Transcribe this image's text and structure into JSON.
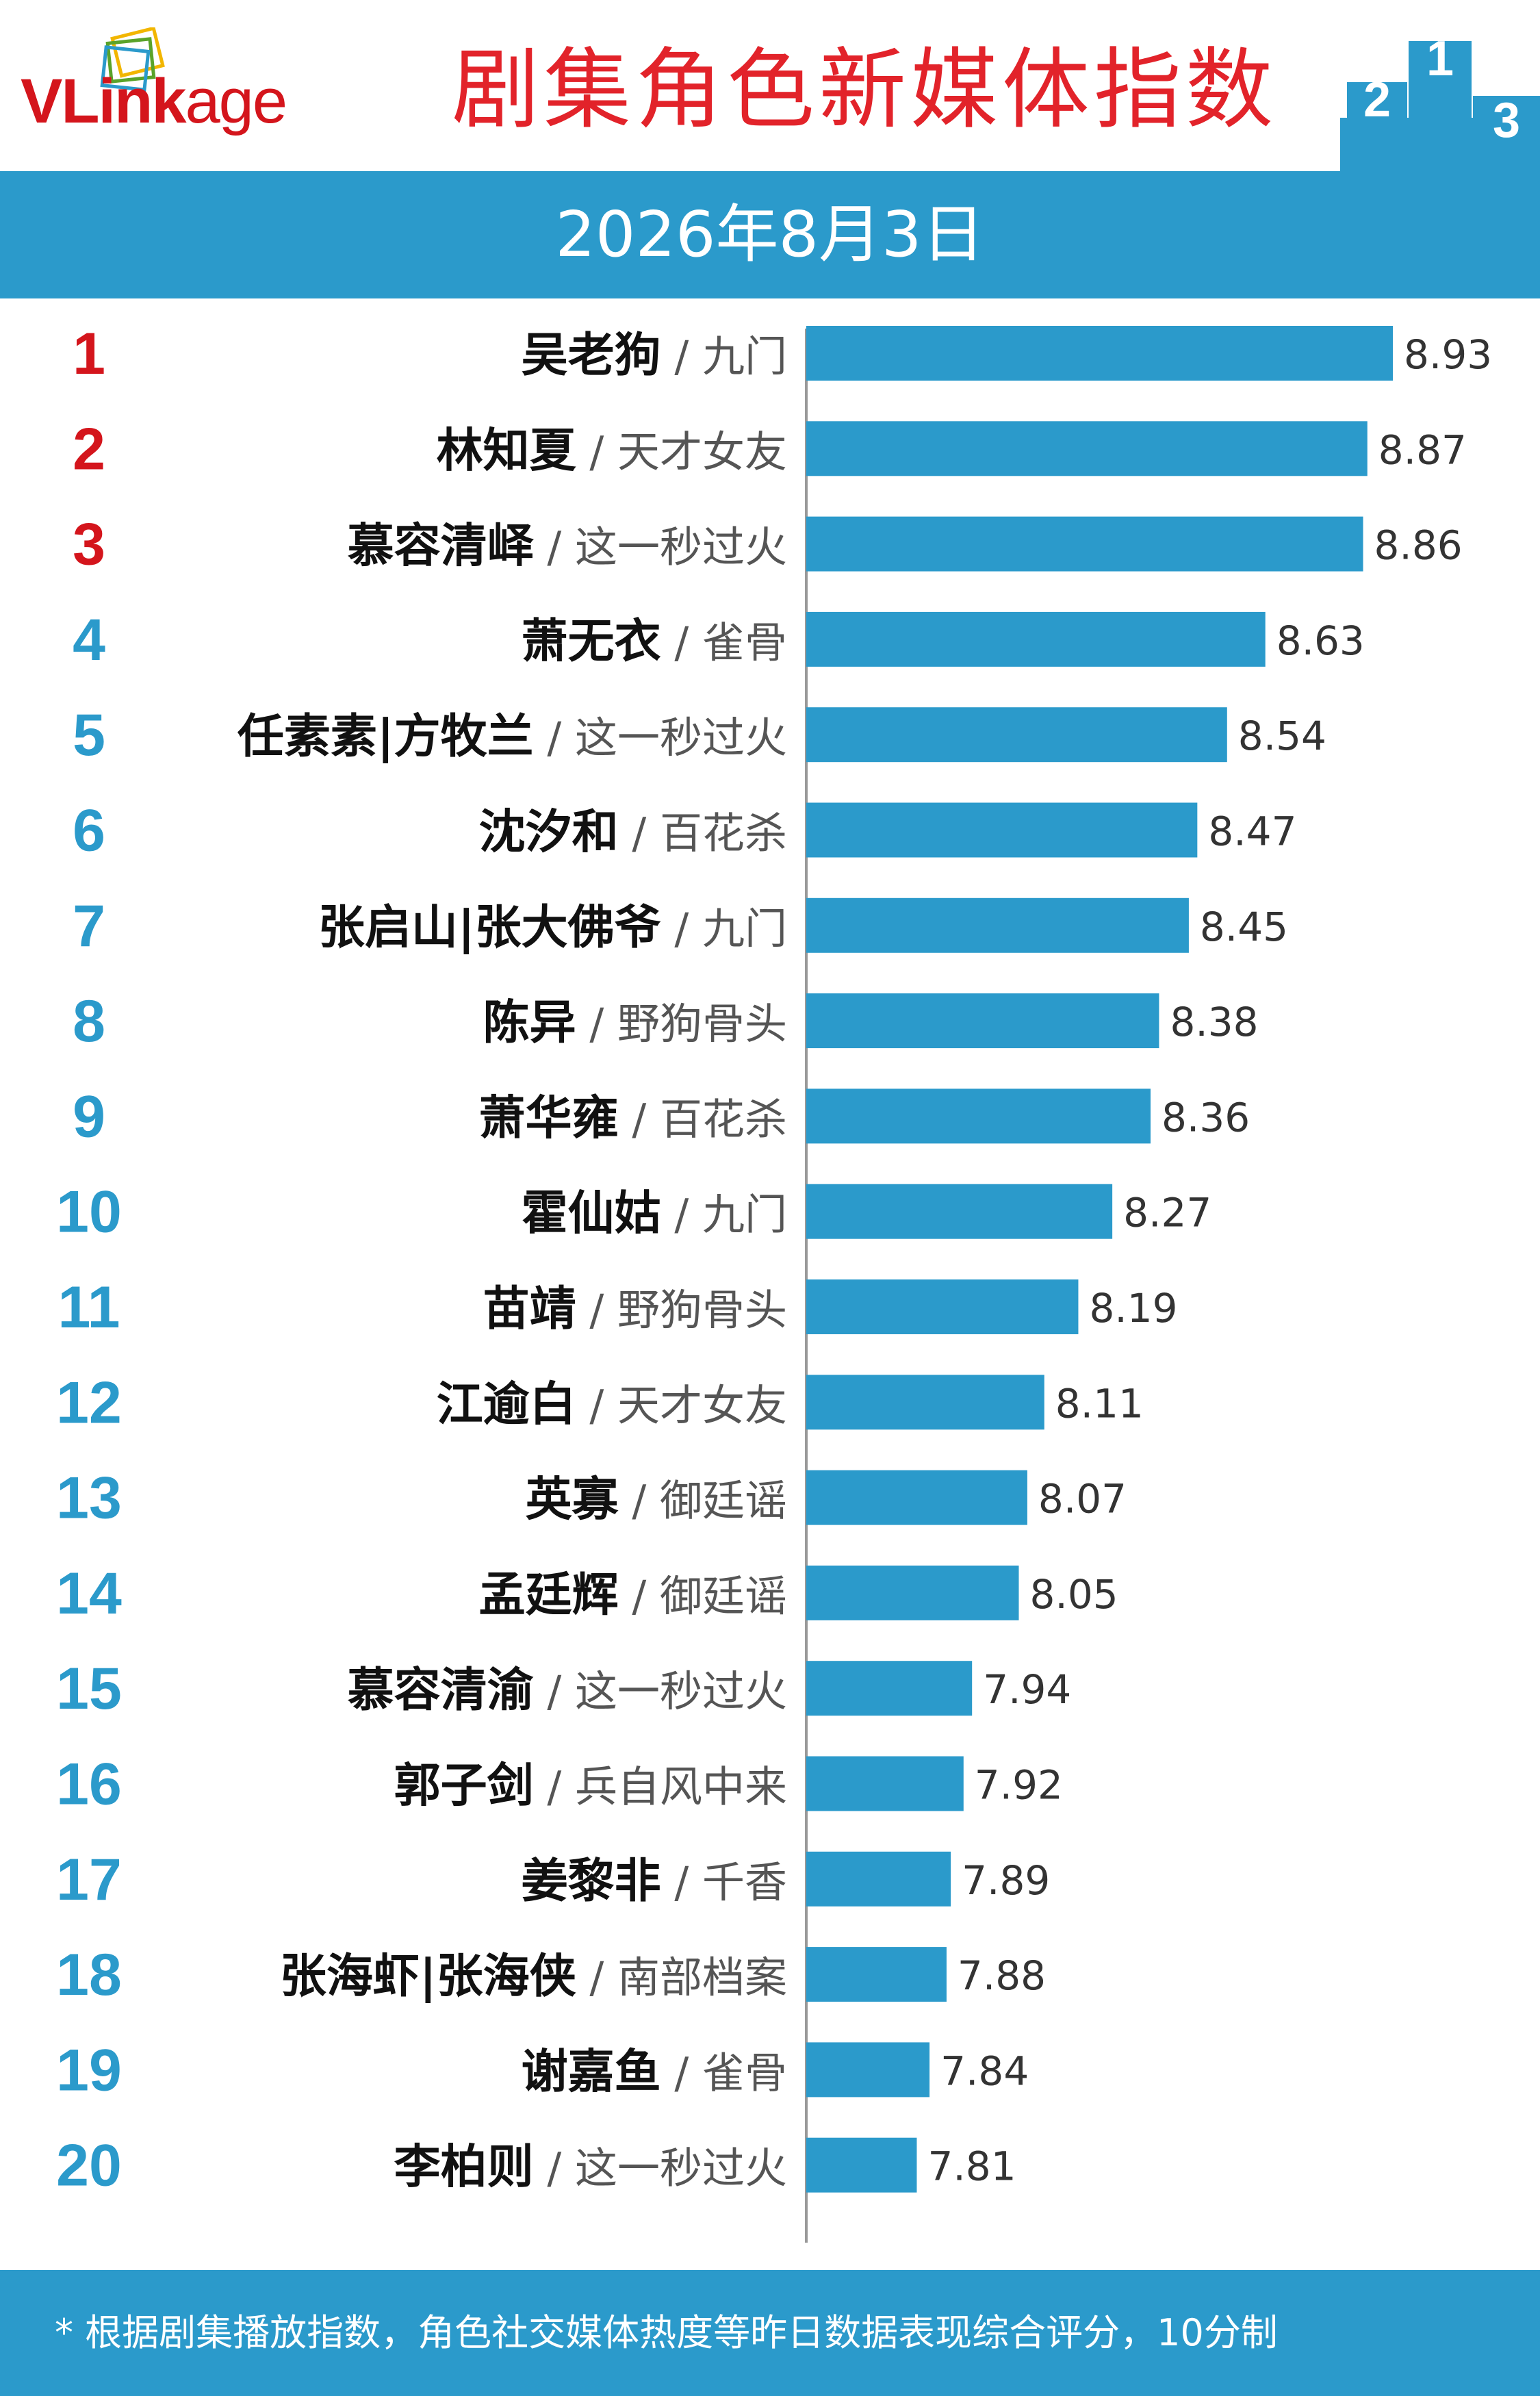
{
  "header": {
    "logo_text_a": "VLink",
    "logo_text_b": "age",
    "title": "剧集角色新媒体指数",
    "podium_labels": [
      "2",
      "1",
      "3"
    ]
  },
  "date": "2026年8月3日",
  "colors": {
    "bar": "#2b9acb",
    "rank_top3": "#d4151c",
    "rank_other": "#2b9acb",
    "title": "#e2232a",
    "band": "#2b9acb"
  },
  "chart_data": {
    "type": "bar",
    "orientation": "horizontal",
    "title": "剧集角色新媒体指数",
    "subtitle": "2026年8月3日",
    "xlim": [
      7.55,
      9.05
    ],
    "items": [
      {
        "rank": "1",
        "character": "吴老狗",
        "drama": "九门",
        "value": 8.93
      },
      {
        "rank": "2",
        "character": "林知夏",
        "drama": "天才女友",
        "value": 8.87
      },
      {
        "rank": "3",
        "character": "慕容清峄",
        "drama": "这一秒过火",
        "value": 8.86
      },
      {
        "rank": "4",
        "character": "萧无衣",
        "drama": "雀骨",
        "value": 8.63
      },
      {
        "rank": "5",
        "character": "任素素|方牧兰",
        "drama": "这一秒过火",
        "value": 8.54
      },
      {
        "rank": "6",
        "character": "沈汐和",
        "drama": "百花杀",
        "value": 8.47
      },
      {
        "rank": "7",
        "character": "张启山|张大佛爷",
        "drama": "九门",
        "value": 8.45
      },
      {
        "rank": "8",
        "character": "陈异",
        "drama": "野狗骨头",
        "value": 8.38
      },
      {
        "rank": "9",
        "character": "萧华雍",
        "drama": "百花杀",
        "value": 8.36
      },
      {
        "rank": "10",
        "character": "霍仙姑",
        "drama": "九门",
        "value": 8.27
      },
      {
        "rank": "11",
        "character": "苗靖",
        "drama": "野狗骨头",
        "value": 8.19
      },
      {
        "rank": "12",
        "character": "江逾白",
        "drama": "天才女友",
        "value": 8.11
      },
      {
        "rank": "13",
        "character": "英寡",
        "drama": "御廷谣",
        "value": 8.07
      },
      {
        "rank": "14",
        "character": "孟廷辉",
        "drama": "御廷谣",
        "value": 8.05
      },
      {
        "rank": "15",
        "character": "慕容清渝",
        "drama": "这一秒过火",
        "value": 7.94
      },
      {
        "rank": "16",
        "character": "郭子剑",
        "drama": "兵自风中来",
        "value": 7.92
      },
      {
        "rank": "17",
        "character": "姜黎非",
        "drama": "千香",
        "value": 7.89
      },
      {
        "rank": "18",
        "character": "张海虾|张海侠",
        "drama": "南部档案",
        "value": 7.88
      },
      {
        "rank": "19",
        "character": "谢嘉鱼",
        "drama": "雀骨",
        "value": 7.84
      },
      {
        "rank": "20",
        "character": "李柏则",
        "drama": "这一秒过火",
        "value": 7.81
      }
    ]
  },
  "footer": {
    "note": "* 根据剧集播放指数，角色社交媒体热度等昨日数据表现综合评分，10分制"
  }
}
